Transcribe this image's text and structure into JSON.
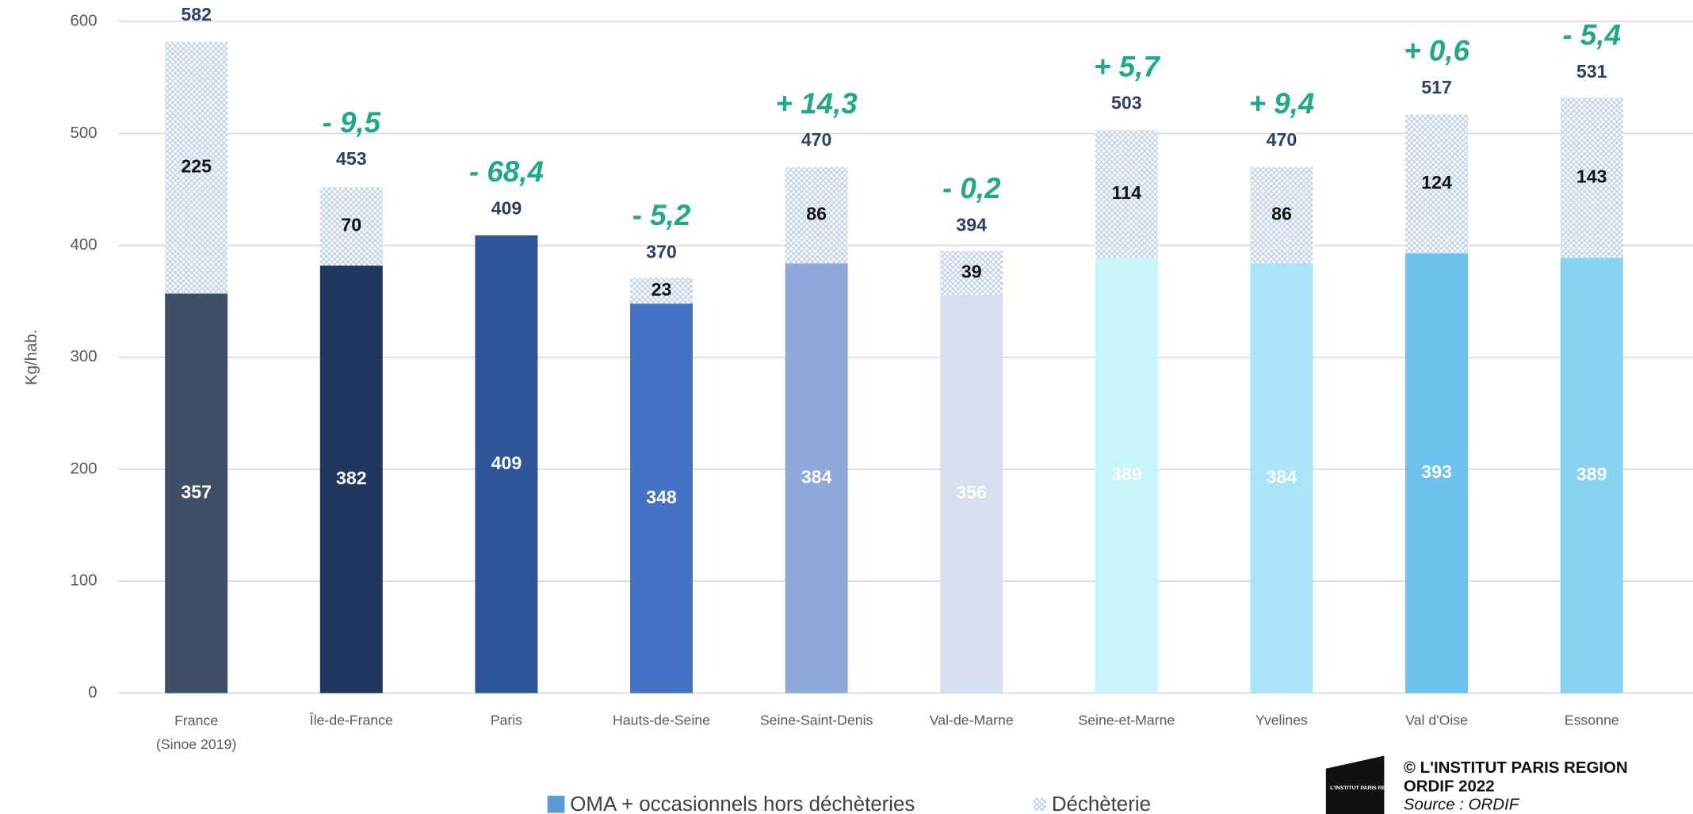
{
  "chart_data": {
    "type": "stacked_bar",
    "ylabel": "Kg/hab.",
    "categories": [
      "France\n(Sinoe 2019)",
      "Île-de-France",
      "Paris",
      "Hauts-de-Seine",
      "Seine-Saint-Denis",
      "Val-de-Marne",
      "Seine-et-Marne",
      "Yvelines",
      "Val d'Oise",
      "Essonne"
    ],
    "series": [
      {
        "name": "OMA + occasionnels hors déchèteries",
        "color": "#5b9bd5",
        "colors": [
          "#3f4f66",
          "#21365e",
          "#2e5597",
          "#4472c4",
          "#8eaadb",
          "#d6dff0",
          "#c8f4fc",
          "#a9e4f7",
          "#6cc3ee",
          "#89d3f2"
        ],
        "values": [
          357,
          382,
          409,
          348,
          384,
          356,
          389,
          384,
          393,
          389
        ]
      },
      {
        "name": "Déchèterie",
        "color": "#c5d5ee",
        "values": [
          225,
          70,
          null,
          23,
          86,
          39,
          114,
          86,
          124,
          143
        ]
      }
    ],
    "totals": [
      582,
      453,
      409,
      370,
      470,
      394,
      503,
      470,
      517,
      531
    ],
    "changes": {
      "values": [
        null,
        -9.5,
        -68.4,
        -5.2,
        14.3,
        -0.2,
        5.7,
        9.4,
        0.6,
        -5.4
      ],
      "value_labels": [
        null,
        "- 9,5",
        "- 68,4",
        "- 5,2",
        "+ 14,3",
        "- 0,2",
        "+ 5,7",
        "+ 9,4",
        "+ 0,6",
        "- 5,4"
      ]
    },
    "ylim": [
      0,
      600
    ],
    "yticks": [
      0,
      100,
      200,
      300,
      400,
      500,
      600
    ],
    "grid": true,
    "credit": {
      "logo": "L'INSTITUT PARIS REGION",
      "lines": [
        "© L'INSTITUT PARIS REGION",
        "ORDIF 2022",
        "Source : ORDIF"
      ]
    }
  }
}
